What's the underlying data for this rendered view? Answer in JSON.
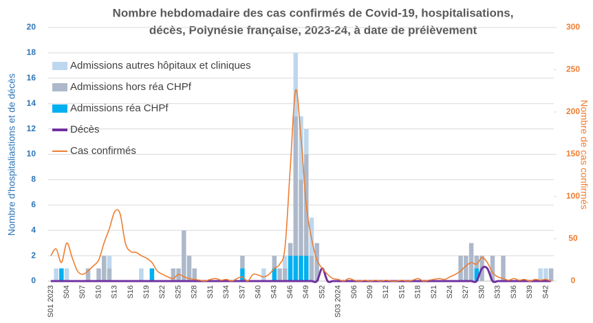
{
  "chart_data": {
    "type": "combo",
    "title": [
      "Nombre hebdomadaire des cas confirmés de Covid-19, hospitalisations,",
      "décès, Polynésie française, 2023-24, à date de prélèvement"
    ],
    "ylabel": "Nombre d'hospitaliastions et de décès",
    "y2label": "Nombre de cas confirmés",
    "categories": [
      "S01 2023",
      null,
      null,
      "S04",
      null,
      null,
      "S07",
      null,
      null,
      "S10",
      null,
      null,
      "S13",
      null,
      null,
      "S16",
      null,
      null,
      "S19",
      null,
      null,
      "S22",
      null,
      null,
      "S25",
      null,
      null,
      "S28",
      null,
      null,
      "S31",
      null,
      null,
      "S34",
      null,
      null,
      "S37",
      null,
      null,
      "S40",
      null,
      null,
      "S43",
      null,
      null,
      "S46",
      null,
      null,
      "S49",
      null,
      null,
      "S52",
      null,
      null,
      "S03 2024",
      null,
      null,
      "S06",
      null,
      null,
      "S09",
      null,
      null,
      "S12",
      null,
      null,
      "S15",
      null,
      null,
      "S18",
      null,
      null,
      "S21",
      null,
      null,
      "S24",
      null,
      null,
      "S27",
      null,
      null,
      "S30",
      null,
      null,
      "S33",
      null,
      null,
      "S36",
      null,
      null,
      "S39",
      null,
      null,
      "S42",
      null
    ],
    "ylim": [
      0,
      20
    ],
    "yticks": [
      0,
      2,
      4,
      6,
      8,
      10,
      12,
      14,
      16,
      18,
      20
    ],
    "y2lim": [
      0,
      300
    ],
    "y2ticks": [
      0,
      50,
      100,
      150,
      200,
      250,
      300
    ],
    "series": [
      {
        "name": "Admissions autres hôpitaux et cliniques",
        "type": "bar",
        "color": "#bdd7ee",
        "values": [
          0,
          1,
          0,
          1,
          0,
          0,
          0,
          0,
          0,
          0,
          0,
          1,
          0,
          0,
          0,
          0,
          0,
          1,
          0,
          0,
          0,
          0,
          0,
          0,
          0,
          0,
          0,
          0,
          0,
          0,
          0,
          0,
          0,
          0,
          0,
          0,
          0,
          0,
          0,
          0,
          1,
          0,
          0,
          0,
          1,
          0,
          5,
          5,
          2,
          3,
          0,
          0,
          0,
          0,
          0,
          0,
          0,
          0,
          0,
          0,
          0,
          0,
          0,
          0,
          0,
          0,
          0,
          0,
          0,
          0,
          0,
          0,
          0,
          0,
          0,
          0,
          0,
          0,
          0,
          0,
          0,
          0,
          0,
          0,
          0,
          0,
          0,
          0,
          0,
          0,
          0,
          0,
          1,
          1,
          0
        ]
      },
      {
        "name": "Admissions hors réa CHPf",
        "type": "bar",
        "color": "#adb9ca",
        "values": [
          0,
          0,
          0,
          0,
          0,
          0,
          0,
          1,
          0,
          1,
          2,
          1,
          0,
          0,
          0,
          0,
          0,
          0,
          0,
          0,
          0,
          0,
          0,
          1,
          1,
          4,
          2,
          1,
          0,
          0,
          0,
          0,
          0,
          0,
          0,
          0,
          1,
          0,
          0,
          0,
          0,
          0,
          1,
          1,
          1,
          1,
          11,
          6,
          8,
          2,
          3,
          0,
          0,
          0,
          0,
          0,
          0,
          0,
          0,
          0,
          0,
          0,
          0,
          0,
          0,
          0,
          0,
          0,
          0,
          0,
          0,
          0,
          0,
          0,
          0,
          0,
          0,
          2,
          2,
          3,
          1,
          2,
          0,
          2,
          0,
          2,
          0,
          0,
          0,
          0,
          0,
          0,
          0,
          0,
          1
        ]
      },
      {
        "name": "Admissions réa CHPf",
        "type": "bar",
        "color": "#00b0f0",
        "values": [
          0,
          0,
          1,
          0,
          0,
          0,
          0,
          0,
          0,
          0,
          0,
          0,
          0,
          0,
          0,
          0,
          0,
          0,
          0,
          1,
          0,
          0,
          0,
          0,
          0,
          0,
          0,
          0,
          0,
          0,
          0,
          0,
          0,
          0,
          0,
          0,
          1,
          0,
          0,
          0,
          0,
          0,
          1,
          0,
          0,
          2,
          2,
          2,
          2,
          0,
          0,
          0,
          0,
          0,
          0,
          0,
          0,
          0,
          0,
          0,
          0,
          0,
          0,
          0,
          0,
          0,
          0,
          0,
          0,
          0,
          0,
          0,
          0,
          0,
          0,
          0,
          0,
          0,
          0,
          0,
          1,
          0,
          0,
          0,
          0,
          0,
          0,
          0,
          0,
          0,
          0,
          0,
          0,
          0,
          0
        ]
      },
      {
        "name": "Décès",
        "type": "line",
        "color": "#7030a0",
        "values": [
          0,
          0,
          0,
          0,
          0,
          0,
          0,
          0,
          0,
          0,
          0,
          0,
          0,
          0,
          0,
          0,
          0,
          0,
          0,
          0,
          0,
          0,
          0,
          0,
          0,
          0,
          0,
          0,
          0,
          0,
          0,
          0,
          0,
          0,
          0,
          0,
          0,
          0,
          0,
          0,
          0,
          0,
          0,
          0,
          0,
          0,
          0,
          0,
          0,
          0,
          0,
          1,
          0,
          0,
          0,
          0,
          0,
          0,
          0,
          0,
          0,
          0,
          0,
          0,
          0,
          0,
          0,
          0,
          0,
          0,
          0,
          0,
          0,
          0,
          0,
          0,
          0,
          0,
          0,
          0,
          0,
          1,
          1,
          0,
          0,
          0,
          0,
          0,
          0,
          0,
          0,
          0,
          0,
          0,
          0
        ]
      },
      {
        "name": "Cas confirmés",
        "type": "line",
        "axis": "y2",
        "color": "#ed7d31",
        "values": [
          30,
          38,
          22,
          45,
          28,
          12,
          8,
          12,
          18,
          25,
          45,
          62,
          82,
          80,
          45,
          35,
          34,
          30,
          27,
          22,
          12,
          8,
          5,
          3,
          8,
          5,
          3,
          2,
          1,
          0,
          2,
          3,
          1,
          2,
          0,
          3,
          5,
          0,
          8,
          7,
          5,
          8,
          15,
          20,
          40,
          135,
          226,
          170,
          90,
          50,
          25,
          15,
          8,
          3,
          2,
          0,
          3,
          1,
          0,
          1,
          0,
          1,
          0,
          1,
          0,
          0,
          1,
          0,
          1,
          3,
          0,
          1,
          2,
          3,
          2,
          5,
          8,
          12,
          18,
          22,
          20,
          28,
          22,
          10,
          5,
          3,
          1,
          3,
          1,
          2,
          0,
          2,
          1,
          2,
          0
        ]
      }
    ]
  }
}
